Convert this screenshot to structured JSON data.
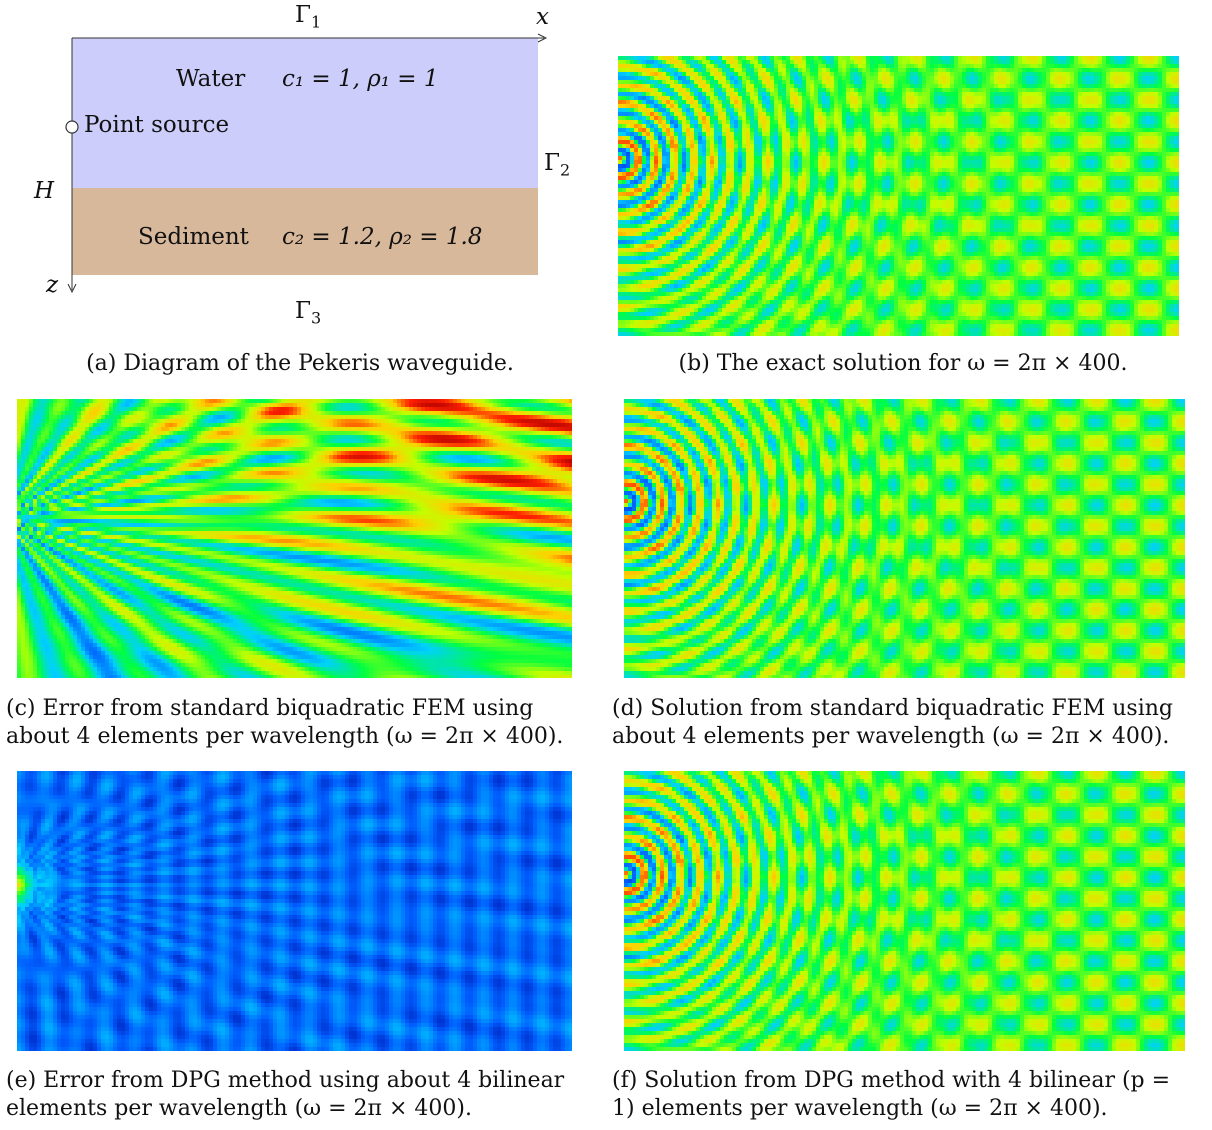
{
  "diagram": {
    "gamma1": "Γ",
    "gamma1_sub": "1",
    "gamma2": "Γ",
    "gamma2_sub": "2",
    "gamma3": "Γ",
    "gamma3_sub": "3",
    "x_axis": "x",
    "z_axis": "z",
    "depth": "H",
    "water_label": "Water",
    "water_params": "c₁ = 1, ρ₁ = 1",
    "source_label": "Point source",
    "sediment_label": "Sediment",
    "sediment_params": "c₂ = 1.2, ρ₂ = 1.8",
    "colors": {
      "water": "#cccdfa",
      "sediment": "#d8b89b"
    }
  },
  "captions": {
    "a": "(a)  Diagram of the Pekeris waveguide.",
    "b": "(b)  The exact solution for ω = 2π × 400.",
    "c_line1": "(c)  Error from standard biquadratic FEM using",
    "c_line2": "about 4 elements per wavelength (ω = 2π × 400).",
    "d_line1": "(d)  Solution from standard biquadratic FEM using",
    "d_line2": "about 4 elements per wavelength (ω = 2π × 400).",
    "e_line1": "(e)  Error from DPG method using about 4 bilinear",
    "e_line2": "elements per wavelength (ω = 2π × 400).",
    "f_line1": "(f)  Solution from DPG method with 4 bilinear (p =",
    "f_line2": "1) elements per wavelength (ω = 2π × 400)."
  },
  "colormap": [
    "#0000a0",
    "#0060ff",
    "#00d0ff",
    "#00ff40",
    "#c0ff00",
    "#ffd000",
    "#ff2000",
    "#b00000"
  ]
}
